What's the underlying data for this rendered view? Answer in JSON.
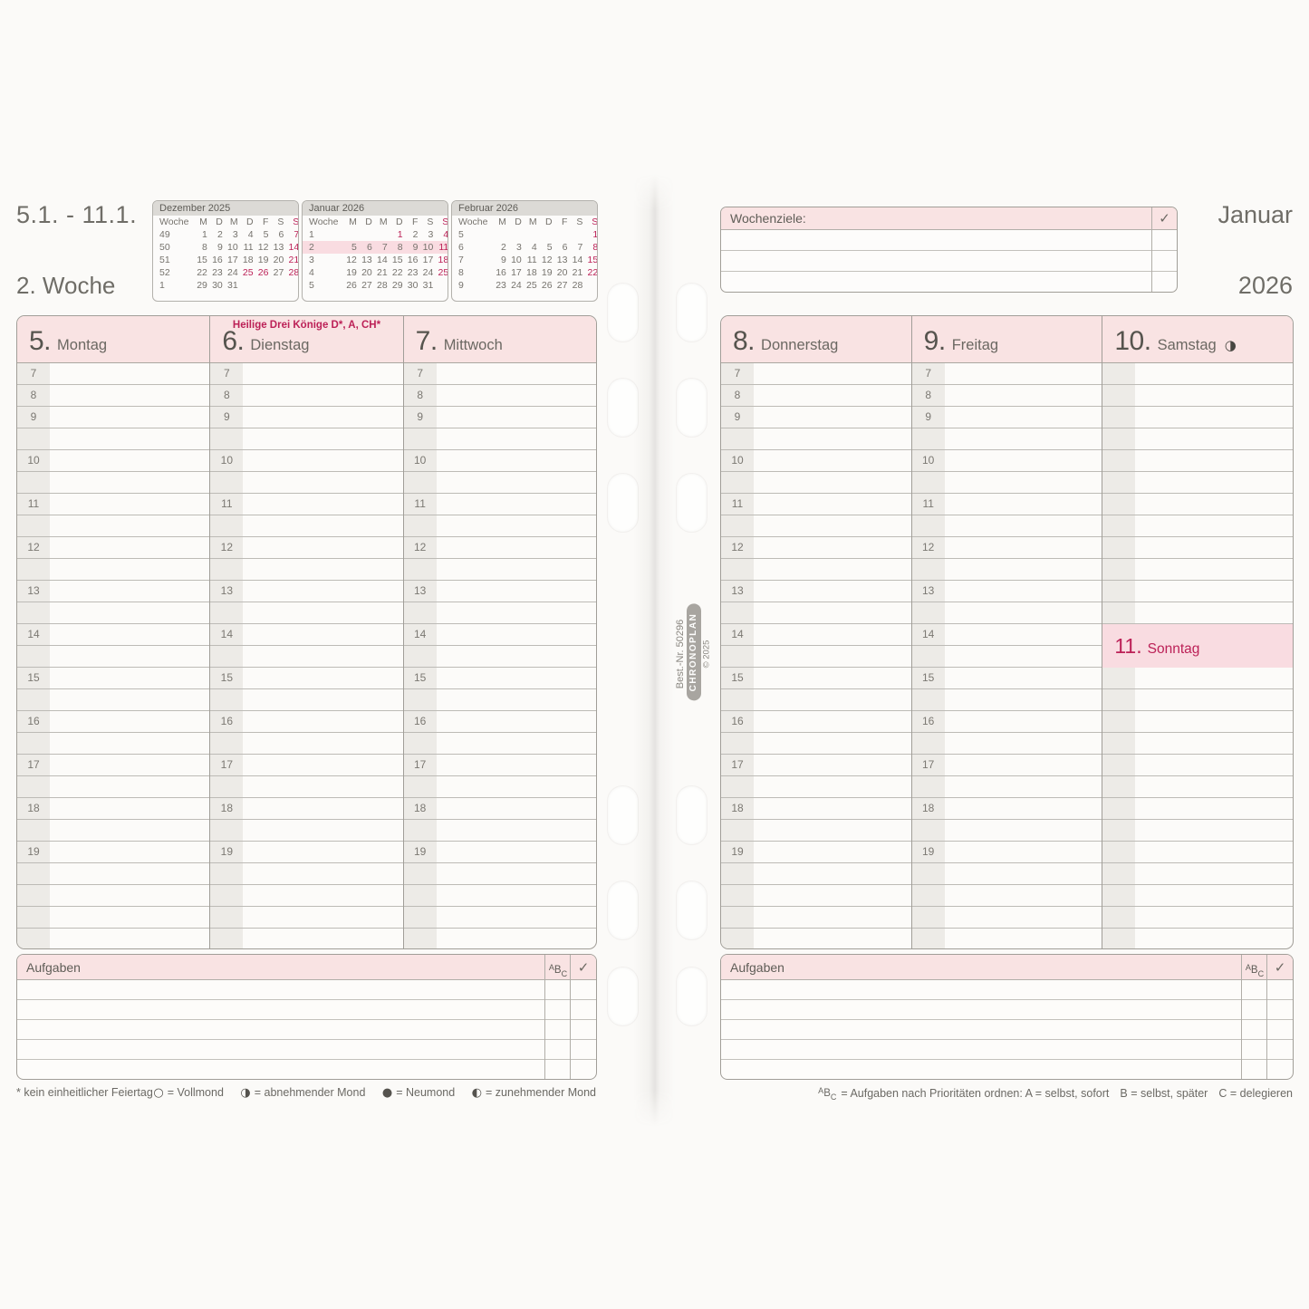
{
  "colors": {
    "paper": "#fbfaf8",
    "pink": "#f9e3e3",
    "pinkhl": "#f9dce1",
    "red": "#bc2157",
    "strip": "#edebe7",
    "mchead": "#dcdad6"
  },
  "header_left": {
    "date_range": "5.1. - 11.1.",
    "week_label": "2. Woche"
  },
  "header_right": {
    "month": "Januar",
    "year": "2026"
  },
  "minical_headers": [
    "Woche",
    "M",
    "D",
    "M",
    "D",
    "F",
    "S",
    "S"
  ],
  "mini_calendars": [
    {
      "title": "Dezember 2025",
      "weeks": [
        {
          "wk": "49",
          "days": [
            "1",
            "2",
            "3",
            "4",
            "5",
            "6",
            "7"
          ],
          "red": [
            6
          ],
          "hl": false
        },
        {
          "wk": "50",
          "days": [
            "8",
            "9",
            "10",
            "11",
            "12",
            "13",
            "14"
          ],
          "red": [
            6
          ],
          "hl": false
        },
        {
          "wk": "51",
          "days": [
            "15",
            "16",
            "17",
            "18",
            "19",
            "20",
            "21"
          ],
          "red": [
            6
          ],
          "hl": false
        },
        {
          "wk": "52",
          "days": [
            "22",
            "23",
            "24",
            "25",
            "26",
            "27",
            "28"
          ],
          "red": [
            3,
            4,
            6
          ],
          "hl": false
        },
        {
          "wk": "1",
          "days": [
            "29",
            "30",
            "31",
            "",
            "",
            "",
            ""
          ],
          "red": [],
          "hl": false
        }
      ]
    },
    {
      "title": "Januar 2026",
      "weeks": [
        {
          "wk": "1",
          "days": [
            "",
            "",
            "",
            "1",
            "2",
            "3",
            "4"
          ],
          "red": [
            3,
            6
          ],
          "hl": false
        },
        {
          "wk": "2",
          "days": [
            "5",
            "6",
            "7",
            "8",
            "9",
            "10",
            "11"
          ],
          "red": [
            6
          ],
          "hl": true
        },
        {
          "wk": "3",
          "days": [
            "12",
            "13",
            "14",
            "15",
            "16",
            "17",
            "18"
          ],
          "red": [
            6
          ],
          "hl": false
        },
        {
          "wk": "4",
          "days": [
            "19",
            "20",
            "21",
            "22",
            "23",
            "24",
            "25"
          ],
          "red": [
            6
          ],
          "hl": false
        },
        {
          "wk": "5",
          "days": [
            "26",
            "27",
            "28",
            "29",
            "30",
            "31",
            ""
          ],
          "red": [],
          "hl": false
        }
      ]
    },
    {
      "title": "Februar 2026",
      "weeks": [
        {
          "wk": "5",
          "days": [
            "",
            "",
            "",
            "",
            "",
            "",
            "1"
          ],
          "red": [
            6
          ],
          "hl": false
        },
        {
          "wk": "6",
          "days": [
            "2",
            "3",
            "4",
            "5",
            "6",
            "7",
            "8"
          ],
          "red": [
            6
          ],
          "hl": false
        },
        {
          "wk": "7",
          "days": [
            "9",
            "10",
            "11",
            "12",
            "13",
            "14",
            "15"
          ],
          "red": [
            6
          ],
          "hl": false
        },
        {
          "wk": "8",
          "days": [
            "16",
            "17",
            "18",
            "19",
            "20",
            "21",
            "22"
          ],
          "red": [
            6
          ],
          "hl": false
        },
        {
          "wk": "9",
          "days": [
            "23",
            "24",
            "25",
            "26",
            "27",
            "28",
            ""
          ],
          "red": [],
          "hl": false
        }
      ]
    }
  ],
  "wochenziele": {
    "label": "Wochenziele:",
    "check": "✓",
    "row_count": 3
  },
  "hour_rows": [
    "7",
    "8",
    "9",
    "",
    "10",
    "",
    "11",
    "",
    "12",
    "",
    "13",
    "",
    "14",
    "",
    "15",
    "",
    "16",
    "",
    "17",
    "",
    "18",
    "",
    "19",
    "",
    "",
    "",
    ""
  ],
  "days": {
    "left": [
      {
        "num": "5.",
        "name": "Montag"
      },
      {
        "num": "6.",
        "name": "Dienstag",
        "holiday": "Heilige Drei Könige D*, A, CH*"
      },
      {
        "num": "7.",
        "name": "Mittwoch"
      }
    ],
    "right": [
      {
        "num": "8.",
        "name": "Donnerstag"
      },
      {
        "num": "9.",
        "name": "Freitag"
      },
      {
        "num": "10.",
        "name": "Samstag",
        "moon": "◑",
        "hide_hours": true,
        "sunday": true
      }
    ],
    "sunday": {
      "num": "11.",
      "name": "Sonntag"
    }
  },
  "aufgaben": {
    "label": "Aufgaben",
    "check": "✓",
    "row_count": 5
  },
  "abc": {
    "a": "A",
    "b": "B",
    "c": "C"
  },
  "footnotes": {
    "left": "* kein einheitlicher Feiertag",
    "moon_legend": [
      {
        "glyph": "○",
        "label": "= Vollmond"
      },
      {
        "glyph": "◑",
        "label": "= abnehmender Mond"
      },
      {
        "glyph": "●",
        "label": "= Neumond"
      },
      {
        "glyph": "◐",
        "label": "= zunehmender Mond"
      }
    ],
    "right": {
      "segments": [
        "= Aufgaben nach Prioritäten ordnen: A = selbst, sofort",
        "B = selbst, später",
        "C = delegieren"
      ]
    }
  },
  "spine": {
    "order_no": "Best.-Nr. 50296",
    "brand": "CHRONOPLAN",
    "copyright": "© 2025"
  }
}
